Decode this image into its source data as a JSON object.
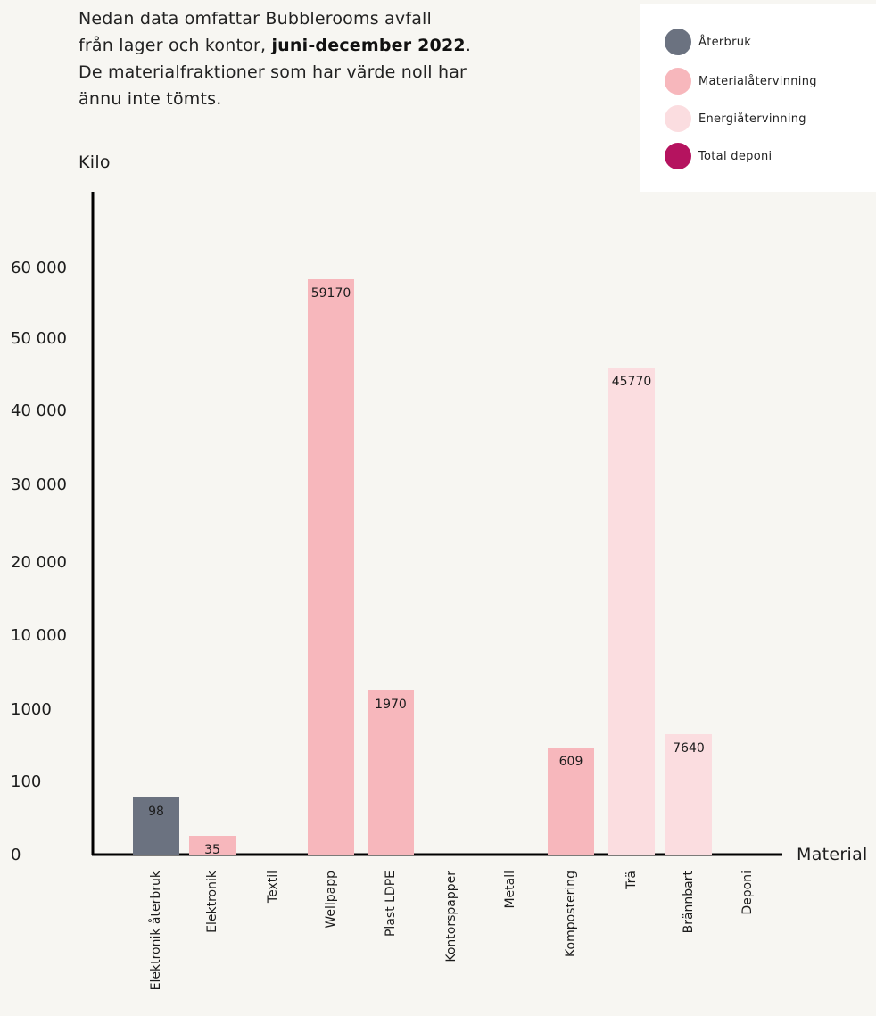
{
  "intro": {
    "line1": "Nedan data omfattar Bubblerooms avfall",
    "line2_pre": "från lager och kontor, ",
    "line2_strong": "juni-december 2022",
    "line2_post": ".",
    "line3": "De materialfraktioner som har värde noll har",
    "line4": "ännu inte tömts."
  },
  "legend": [
    {
      "label": "Återbruk",
      "color": "#6b7280"
    },
    {
      "label": "Materialåtervinning",
      "color": "#f7b7bc"
    },
    {
      "label": "Energiåtervinning",
      "color": "#fbdde0"
    },
    {
      "label": "Total deponi",
      "color": "#b5135f"
    }
  ],
  "chart_data": {
    "type": "bar",
    "ylabel": "Kilo",
    "xlabel": "Material",
    "y_scale": "piecewise (ticks 0, 100, 1000, 10 000 … 60 000)",
    "y_ticks": [
      {
        "label": "0",
        "value": 0
      },
      {
        "label": "100",
        "value": 100
      },
      {
        "label": "1000",
        "value": 1000
      },
      {
        "label": "10 000",
        "value": 10000
      },
      {
        "label": "20 000",
        "value": 20000
      },
      {
        "label": "30 000",
        "value": 30000
      },
      {
        "label": "40 000",
        "value": 40000
      },
      {
        "label": "50 000",
        "value": 50000
      },
      {
        "label": "60 000",
        "value": 60000
      }
    ],
    "categories": [
      "Elektronik återbruk",
      "Elektronik",
      "Textil",
      "Wellpapp",
      "Plast LDPE",
      "Kontorspapper",
      "Metall",
      "Kompostering",
      "Trä",
      "Brännbart",
      "Deponi"
    ],
    "bars": [
      {
        "category": "Elektronik återbruk",
        "value": 98,
        "label": "98",
        "group": "Återbruk",
        "color": "#6b7280"
      },
      {
        "category": "Elektronik",
        "value": 35,
        "label": "35",
        "group": "Materialåtervinning",
        "color": "#f7b7bc"
      },
      {
        "category": "Textil",
        "value": 0,
        "label": "",
        "group": "Materialåtervinning",
        "color": "#f7b7bc"
      },
      {
        "category": "Wellpapp",
        "value": 59170,
        "label": "59170",
        "group": "Materialåtervinning",
        "color": "#f7b7bc"
      },
      {
        "category": "Plast LDPE",
        "value": 1970,
        "label": "1970",
        "group": "Materialåtervinning",
        "color": "#f7b7bc"
      },
      {
        "category": "Kontorspapper",
        "value": 0,
        "label": "",
        "group": "Materialåtervinning",
        "color": "#f7b7bc"
      },
      {
        "category": "Metall",
        "value": 0,
        "label": "",
        "group": "Materialåtervinning",
        "color": "#f7b7bc"
      },
      {
        "category": "Kompostering",
        "value": 609,
        "label": "609",
        "group": "Materialåtervinning",
        "color": "#f7b7bc"
      },
      {
        "category": "Trä",
        "value": 45770,
        "label": "45770",
        "group": "Energiåtervinning",
        "color": "#fbdde0"
      },
      {
        "category": "Brännbart",
        "value": 7640,
        "label": "7640",
        "group": "Energiåtervinning",
        "color": "#fbdde0"
      },
      {
        "category": "Deponi",
        "value": 0,
        "label": "",
        "group": "Total deponi",
        "color": "#b5135f"
      }
    ]
  }
}
